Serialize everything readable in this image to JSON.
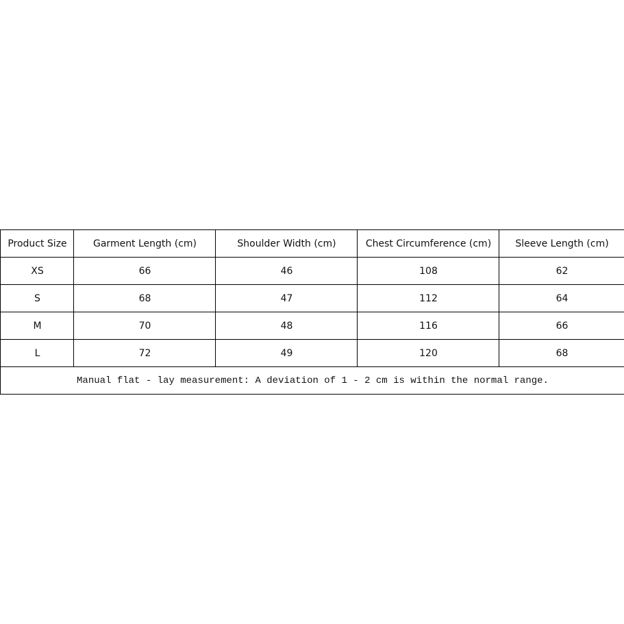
{
  "table": {
    "header": [
      "Product Size",
      "Garment Length (cm)",
      "Shoulder Width (cm)",
      "Chest Circumference (cm)",
      "Sleeve Length (cm)"
    ],
    "rows": [
      [
        "XS",
        66,
        46,
        108,
        62
      ],
      [
        "S",
        68,
        47,
        112,
        64
      ],
      [
        "M",
        70,
        48,
        116,
        66
      ],
      [
        "L",
        72,
        49,
        120,
        68
      ]
    ],
    "note": "Manual flat - lay measurement: A deviation of 1 - 2 cm is within the normal range."
  }
}
